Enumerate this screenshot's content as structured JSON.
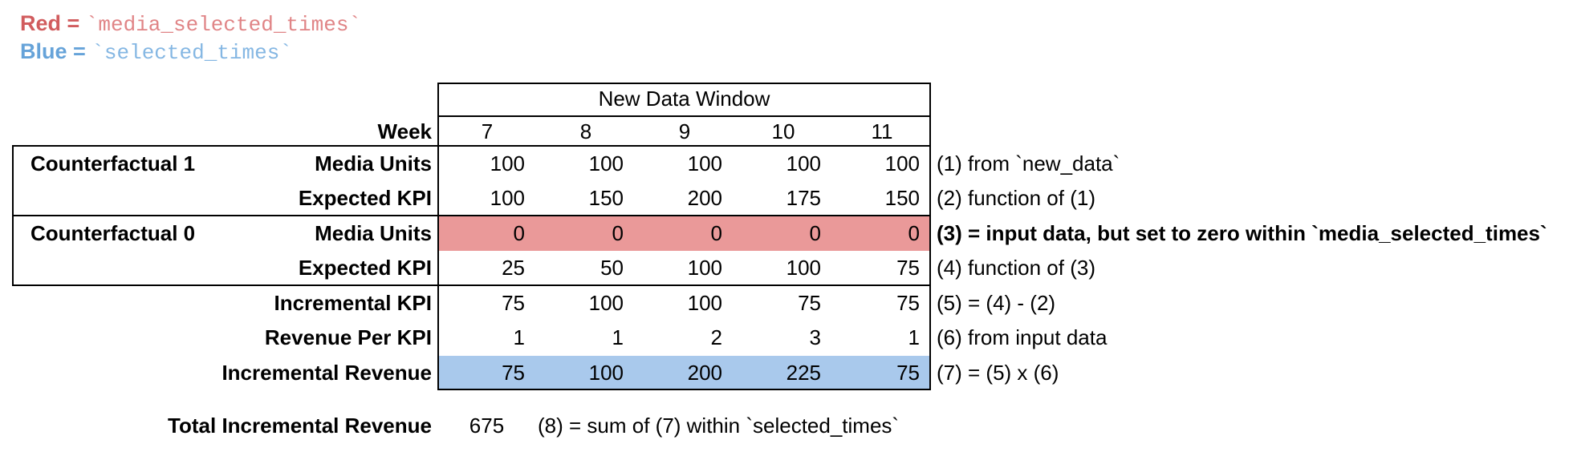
{
  "legend": {
    "red": {
      "prefix": "Red = ",
      "code": "`media_selected_times`",
      "prefix_color": "#d15c5e",
      "code_color": "#e08486"
    },
    "blue": {
      "prefix": "Blue = ",
      "code": "`selected_times`",
      "prefix_color": "#66a3d9",
      "code_color": "#85b7e3"
    }
  },
  "table": {
    "header": "New Data Window",
    "week_label": "Week",
    "weeks": [
      "7",
      "8",
      "9",
      "10",
      "11"
    ],
    "groups": [
      {
        "label": "Counterfactual 1"
      },
      {
        "label": "Counterfactual 0"
      }
    ],
    "highlight_colors": {
      "red": "#ea9999",
      "blue": "#a9c9ec"
    },
    "rows": [
      {
        "label": "Media Units",
        "values": [
          "100",
          "100",
          "100",
          "100",
          "100"
        ],
        "annotation": "(1) from `new_data`"
      },
      {
        "label": "Expected KPI",
        "values": [
          "100",
          "150",
          "200",
          "175",
          "150"
        ],
        "annotation": "(2) function of (1)"
      },
      {
        "label": "Media Units",
        "values": [
          "0",
          "0",
          "0",
          "0",
          "0"
        ],
        "annotation": "(3) = input data, but set to zero within `media_selected_times`",
        "highlight": "red"
      },
      {
        "label": "Expected KPI",
        "values": [
          "25",
          "50",
          "100",
          "100",
          "75"
        ],
        "annotation": "(4) function of (3)"
      },
      {
        "label": "Incremental KPI",
        "values": [
          "75",
          "100",
          "100",
          "75",
          "75"
        ],
        "annotation": "(5) = (4) - (2)"
      },
      {
        "label": "Revenue Per KPI",
        "values": [
          "1",
          "1",
          "2",
          "3",
          "1"
        ],
        "annotation": "(6) from input data"
      },
      {
        "label": "Incremental Revenue",
        "values": [
          "75",
          "100",
          "200",
          "225",
          "75"
        ],
        "annotation": "(7) = (5) x (6)",
        "highlight": "blue"
      }
    ]
  },
  "total": {
    "label": "Total Incremental Revenue",
    "value": "675",
    "annotation": "(8) = sum of (7) within `selected_times`"
  }
}
